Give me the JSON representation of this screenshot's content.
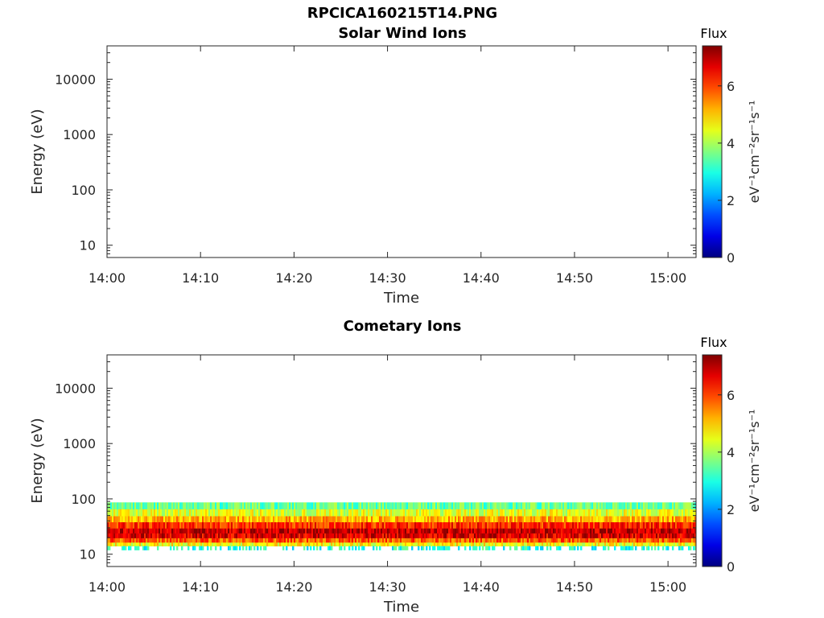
{
  "figure": {
    "title": "RPCICA160215T14.PNG"
  },
  "chart_data": [
    {
      "type": "heatmap",
      "title": "Solar Wind Ions",
      "xlabel": "Time",
      "ylabel": "Energy (eV)",
      "x_ticks": [
        "14:00",
        "14:10",
        "14:20",
        "14:30",
        "14:40",
        "14:50",
        "15:00"
      ],
      "xlim": [
        "14:00",
        "15:03"
      ],
      "y_scale": "log",
      "ylim": [
        6,
        40000
      ],
      "y_ticks": [
        "10",
        "100",
        "1000",
        "10000"
      ],
      "colorbar": {
        "title": "Flux",
        "label": "eV⁻¹cm⁻²sr⁻¹s⁻¹",
        "range": [
          0,
          7.4
        ],
        "ticks": [
          "0",
          "2",
          "4",
          "6"
        ],
        "colormap": "jet"
      },
      "data": "empty"
    },
    {
      "type": "heatmap",
      "title": "Cometary Ions",
      "xlabel": "Time",
      "ylabel": "Energy (eV)",
      "x_ticks": [
        "14:00",
        "14:10",
        "14:20",
        "14:30",
        "14:40",
        "14:50",
        "15:00"
      ],
      "xlim": [
        "14:00",
        "15:03"
      ],
      "y_scale": "log",
      "ylim": [
        6,
        40000
      ],
      "y_ticks": [
        "10",
        "100",
        "1000",
        "10000"
      ],
      "colorbar": {
        "title": "Flux",
        "label": "eV⁻¹cm⁻²sr⁻¹s⁻¹",
        "range": [
          0,
          7.4
        ],
        "ticks": [
          "0",
          "2",
          "4",
          "6"
        ],
        "colormap": "jet"
      },
      "energy_profile": [
        {
          "energy": 80,
          "flux": 3.5
        },
        {
          "energy": 60,
          "flux": 4.4
        },
        {
          "energy": 45,
          "flux": 5.2
        },
        {
          "energy": 35,
          "flux": 6.2
        },
        {
          "energy": 27,
          "flux": 6.9
        },
        {
          "energy": 22,
          "flux": 6.7
        },
        {
          "energy": 18,
          "flux": 5.8
        },
        {
          "energy": 15,
          "flux": 4.6
        },
        {
          "energy": 13,
          "flux": 3.0
        }
      ]
    }
  ]
}
